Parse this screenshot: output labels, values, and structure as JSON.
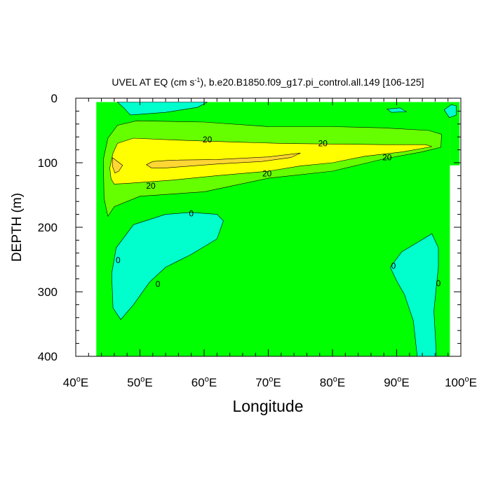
{
  "chart_data": {
    "type": "contour",
    "title": "UVEL AT EQ (cm s",
    "title_unit_exp": "-1",
    "title_rest": "), b.e20.B1850.f09_g17.pi_control.all.149 [106-125]",
    "xlabel": "Longitude",
    "ylabel": "DEPTH (m)",
    "xlim": [
      40,
      100
    ],
    "ylim": [
      0,
      400
    ],
    "y_inverted": true,
    "x_ticks": [
      {
        "value": 40,
        "label": "40",
        "suffix": "E"
      },
      {
        "value": 50,
        "label": "50",
        "suffix": "E"
      },
      {
        "value": 60,
        "label": "60",
        "suffix": "E"
      },
      {
        "value": 70,
        "label": "70",
        "suffix": "E"
      },
      {
        "value": 80,
        "label": "80",
        "suffix": "E"
      },
      {
        "value": 90,
        "label": "90",
        "suffix": "E"
      },
      {
        "value": 100,
        "label": "100",
        "suffix": "E"
      }
    ],
    "y_ticks": [
      {
        "value": 0,
        "label": "0"
      },
      {
        "value": 100,
        "label": "100"
      },
      {
        "value": 200,
        "label": "200"
      },
      {
        "value": 300,
        "label": "300"
      },
      {
        "value": 400,
        "label": "400"
      }
    ],
    "colors": {
      "negative": "#00ffcc",
      "zero_to_10": "#00ff00",
      "ten_to_20": "#66ff00",
      "twenty_to_30": "#ffff00",
      "thirty_plus": "#ffd633"
    },
    "regions": [
      {
        "level": "zero_to_10",
        "points": [
          [
            43.2,
            6
          ],
          [
            98.3,
            6
          ],
          [
            98.3,
            400
          ],
          [
            43.2,
            400
          ]
        ]
      },
      {
        "level": "zero_to_10",
        "points": [
          [
            98.3,
            6
          ],
          [
            99.8,
            6
          ],
          [
            99.8,
            104
          ],
          [
            98.3,
            104
          ]
        ]
      },
      {
        "level": "negative",
        "points": [
          [
            46.5,
            6
          ],
          [
            60.5,
            6
          ],
          [
            59,
            14
          ],
          [
            54,
            22
          ],
          [
            48.5,
            26
          ],
          [
            47.5,
            15
          ]
        ]
      },
      {
        "level": "negative",
        "points": [
          [
            88.5,
            17
          ],
          [
            90.5,
            15
          ],
          [
            91.5,
            21
          ],
          [
            89.2,
            22
          ]
        ]
      },
      {
        "level": "negative",
        "points": [
          [
            97.4,
            18
          ],
          [
            98.5,
            10
          ],
          [
            99.3,
            12
          ],
          [
            99.3,
            26
          ],
          [
            98.2,
            30
          ]
        ]
      },
      {
        "level": "negative",
        "points": [
          [
            54,
            180
          ],
          [
            58,
            177
          ],
          [
            62,
            180
          ],
          [
            63,
            190
          ],
          [
            62,
            218
          ],
          [
            58,
            242
          ],
          [
            54,
            262
          ],
          [
            51.5,
            285
          ],
          [
            49,
            320
          ],
          [
            47,
            343
          ],
          [
            45.8,
            325
          ],
          [
            45.6,
            272
          ],
          [
            46.3,
            232
          ],
          [
            49,
            196
          ]
        ]
      },
      {
        "level": "negative",
        "points": [
          [
            89,
            262
          ],
          [
            90.8,
            238
          ],
          [
            93.5,
            222
          ],
          [
            95.5,
            210
          ],
          [
            96.5,
            232
          ],
          [
            96.5,
            262
          ],
          [
            96.2,
            290
          ],
          [
            95.8,
            330
          ],
          [
            96.2,
            400
          ],
          [
            93.2,
            400
          ],
          [
            92.6,
            345
          ],
          [
            91.2,
            304
          ],
          [
            90,
            283
          ]
        ]
      },
      {
        "level": "ten_to_20",
        "points": [
          [
            44.3,
            95
          ],
          [
            45,
            62
          ],
          [
            46.5,
            42
          ],
          [
            49.5,
            35
          ],
          [
            60,
            37
          ],
          [
            70,
            44
          ],
          [
            80,
            44
          ],
          [
            88,
            46
          ],
          [
            95,
            50
          ],
          [
            97,
            56
          ],
          [
            96.9,
            76
          ],
          [
            94,
            83
          ],
          [
            88,
            94
          ],
          [
            80,
            113
          ],
          [
            70,
            124
          ],
          [
            60,
            145
          ],
          [
            50,
            152
          ],
          [
            46,
            168
          ],
          [
            45,
            183
          ],
          [
            44.4,
            155
          ]
        ]
      },
      {
        "level": "twenty_to_30",
        "points": [
          [
            45.8,
            85
          ],
          [
            46.5,
            70
          ],
          [
            49,
            62
          ],
          [
            56,
            65
          ],
          [
            65,
            68
          ],
          [
            72,
            70
          ],
          [
            80,
            71
          ],
          [
            88,
            72
          ],
          [
            94.5,
            72
          ],
          [
            95.5,
            75
          ],
          [
            91,
            83
          ],
          [
            85,
            90
          ],
          [
            80,
            100
          ],
          [
            75,
            105
          ],
          [
            70,
            113
          ],
          [
            62,
            120
          ],
          [
            55,
            127
          ],
          [
            48,
            132
          ],
          [
            46,
            133
          ],
          [
            45.5,
            125
          ],
          [
            45.3,
            108
          ]
        ]
      },
      {
        "level": "thirty_plus",
        "points": [
          [
            45.7,
            92
          ],
          [
            47.3,
            104
          ],
          [
            46.7,
            113
          ],
          [
            46.1,
            116
          ],
          [
            45.7,
            105
          ]
        ]
      },
      {
        "level": "thirty_plus",
        "points": [
          [
            51,
            103
          ],
          [
            52,
            98
          ],
          [
            55,
            96
          ],
          [
            62,
            95
          ],
          [
            70,
            91
          ],
          [
            75,
            85
          ],
          [
            73.5,
            92
          ],
          [
            69,
            98
          ],
          [
            62,
            102
          ],
          [
            54,
            108
          ],
          [
            51.8,
            108
          ]
        ]
      }
    ],
    "contour_labels": [
      {
        "text": "20",
        "x": 60.5,
        "y": 64
      },
      {
        "text": "20",
        "x": 78.5,
        "y": 70
      },
      {
        "text": "20",
        "x": 88.5,
        "y": 92
      },
      {
        "text": "20",
        "x": 69.8,
        "y": 117
      },
      {
        "text": "20",
        "x": 51.7,
        "y": 136
      },
      {
        "text": "0",
        "x": 58.0,
        "y": 179
      },
      {
        "text": "0",
        "x": 46.6,
        "y": 251
      },
      {
        "text": "0",
        "x": 52.8,
        "y": 288
      },
      {
        "text": "0",
        "x": 89.5,
        "y": 260
      },
      {
        "text": "0",
        "x": 96.5,
        "y": 287
      }
    ]
  }
}
